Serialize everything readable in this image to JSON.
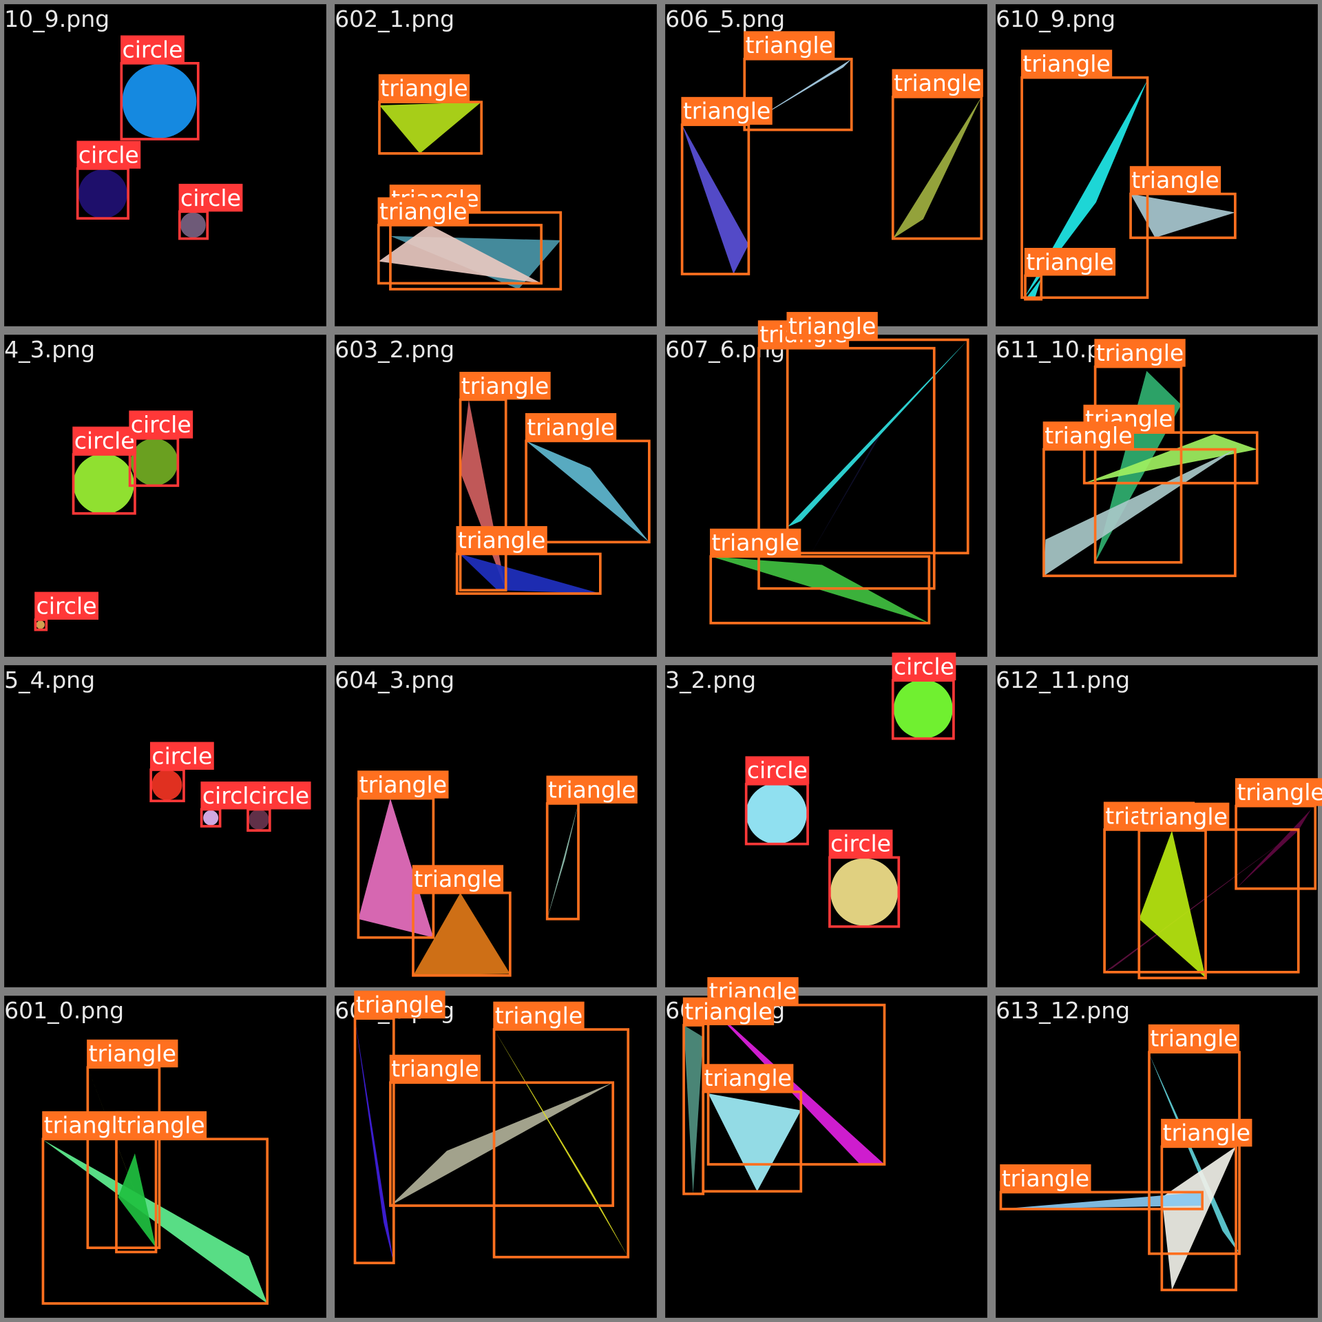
{
  "tiles": [
    {
      "file": "10_9.png",
      "labels": [
        "circle",
        "circle",
        "circle"
      ]
    },
    {
      "file": "602_1.png",
      "labels": [
        "triangle",
        "triangle",
        "triangle"
      ]
    },
    {
      "file": "606_5.png",
      "labels": [
        "triangle",
        "triangle",
        "triangle"
      ]
    },
    {
      "file": "610_9.png",
      "labels": [
        "triangle",
        "triangle",
        "triangle"
      ]
    },
    {
      "file": "4_3.png",
      "labels": [
        "circle",
        "circle",
        "circle"
      ]
    },
    {
      "file": "603_2.png",
      "labels": [
        "triangle",
        "triangle",
        "triangle"
      ]
    },
    {
      "file": "607_6.png",
      "labels": [
        "triangle",
        "triangle",
        "triangle"
      ]
    },
    {
      "file": "611_10.png",
      "labels": [
        "triangle",
        "triangle",
        "triangle"
      ]
    },
    {
      "file": "5_4.png",
      "labels": [
        "circle",
        "circle",
        "circle"
      ]
    },
    {
      "file": "604_3.png",
      "labels": [
        "triangle",
        "triangle",
        "triangle"
      ]
    },
    {
      "file": "3_2.png",
      "labels": [
        "circle",
        "circle",
        "circle"
      ]
    },
    {
      "file": "612_11.png",
      "labels": [
        "triangle",
        "triangle",
        "triangle"
      ]
    },
    {
      "file": "601_0.png",
      "labels": [
        "triangle",
        "triangle",
        "triangle"
      ]
    },
    {
      "file": "605_4.png",
      "labels": [
        "triangle",
        "triangle",
        "triangle"
      ]
    },
    {
      "file": "608_7.png",
      "labels": [
        "triangle",
        "triangle",
        "triangle"
      ]
    },
    {
      "file": "613_12.png",
      "labels": [
        "triangle",
        "triangle",
        "triangle"
      ]
    }
  ]
}
